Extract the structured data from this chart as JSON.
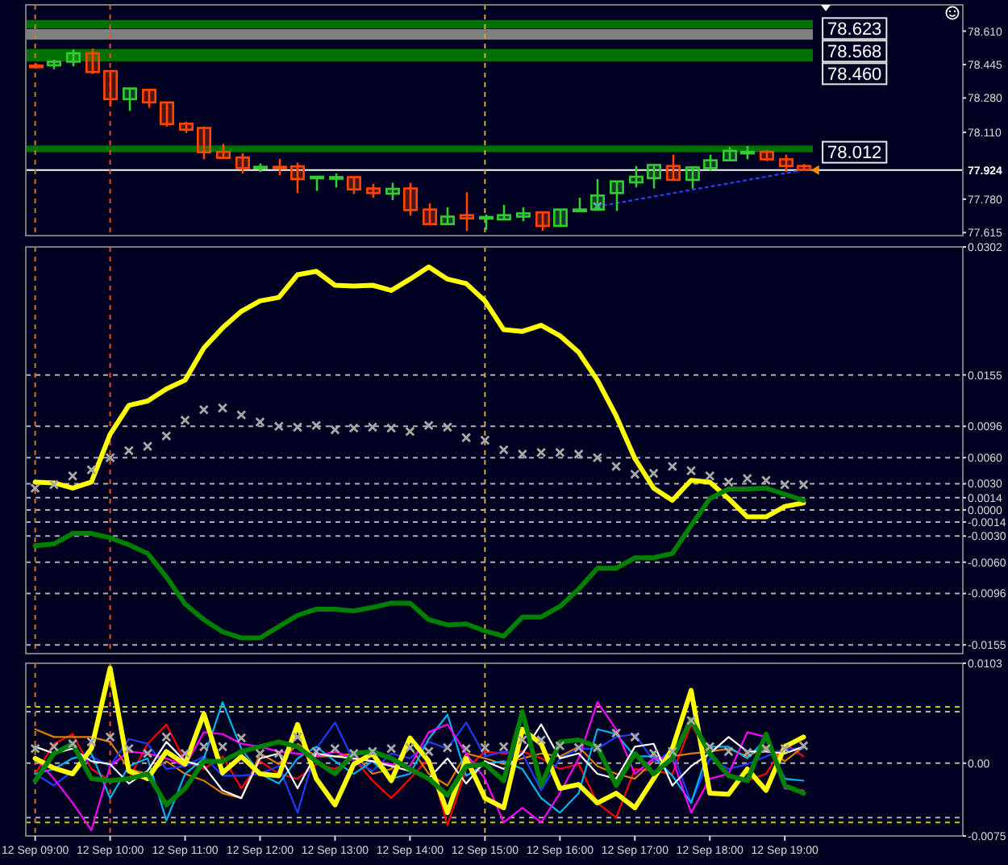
{
  "chart_data": [
    {
      "type": "candlestick",
      "categories": [
        "12 Sep 09:00",
        null,
        null,
        null,
        "12 Sep 10:00",
        null,
        null,
        null,
        "12 Sep 11:00",
        null,
        null,
        null,
        "12 Sep 12:00",
        null,
        null,
        null,
        "12 Sep 13:00",
        null,
        null,
        null,
        "12 Sep 14:00",
        null,
        null,
        null,
        "12 Sep 15:00",
        null,
        null,
        null,
        "12 Sep 16:00",
        null,
        null,
        null,
        "12 Sep 17:00",
        null,
        null,
        null,
        "12 Sep 18:00",
        null,
        null,
        null,
        "12 Sep 19:00",
        null,
        null,
        null,
        null,
        null,
        null,
        null,
        null,
        null
      ],
      "ohlc": [
        [
          78.44,
          78.45,
          78.425,
          78.432
        ],
        [
          78.441,
          78.469,
          78.422,
          78.459
        ],
        [
          78.459,
          78.52,
          78.436,
          78.501
        ],
        [
          78.501,
          78.524,
          78.399,
          78.408
        ],
        [
          78.413,
          78.418,
          78.239,
          78.274
        ],
        [
          78.274,
          78.327,
          78.216,
          78.327
        ],
        [
          78.32,
          78.32,
          78.232,
          78.258
        ],
        [
          78.258,
          78.258,
          78.139,
          78.151
        ],
        [
          78.153,
          78.162,
          78.107,
          78.123
        ],
        [
          78.132,
          78.139,
          77.977,
          78.012
        ],
        [
          78.014,
          78.053,
          77.984,
          77.984
        ],
        [
          77.986,
          78.007,
          77.907,
          77.933
        ],
        [
          77.935,
          77.956,
          77.914,
          77.94
        ],
        [
          77.94,
          77.979,
          77.898,
          77.935
        ],
        [
          77.942,
          77.961,
          77.81,
          77.879
        ],
        [
          77.886,
          77.891,
          77.821,
          77.891
        ],
        [
          77.884,
          77.907,
          77.838,
          77.889
        ],
        [
          77.889,
          77.889,
          77.805,
          77.828
        ],
        [
          77.833,
          77.856,
          77.787,
          77.81
        ],
        [
          77.807,
          77.861,
          77.775,
          77.831
        ],
        [
          77.833,
          77.861,
          77.698,
          77.726
        ],
        [
          77.729,
          77.759,
          77.657,
          77.657
        ],
        [
          77.657,
          77.74,
          77.657,
          77.694
        ],
        [
          77.701,
          77.814,
          77.624,
          77.685
        ],
        [
          77.687,
          77.705,
          77.629,
          77.692
        ],
        [
          77.68,
          77.752,
          77.68,
          77.701
        ],
        [
          77.694,
          77.74,
          77.671,
          77.71
        ],
        [
          77.715,
          77.715,
          77.624,
          77.648
        ],
        [
          77.648,
          77.729,
          77.643,
          77.729
        ],
        [
          77.724,
          77.787,
          77.722,
          77.729
        ],
        [
          77.729,
          77.879,
          77.722,
          77.798
        ],
        [
          77.81,
          77.868,
          77.722,
          77.868
        ],
        [
          77.863,
          77.944,
          77.838,
          77.891
        ],
        [
          77.884,
          77.949,
          77.833,
          77.949
        ],
        [
          77.944,
          78.0,
          77.875,
          77.875
        ],
        [
          77.875,
          77.937,
          77.833,
          77.937
        ],
        [
          77.933,
          78.0,
          77.921,
          77.972
        ],
        [
          77.972,
          78.037,
          77.972,
          78.019
        ],
        [
          78.009,
          78.042,
          77.977,
          78.014
        ],
        [
          78.014,
          78.023,
          77.968,
          77.977
        ],
        [
          77.977,
          78.0,
          77.914,
          77.944
        ],
        [
          77.944,
          77.954,
          77.921,
          77.924
        ],
        null,
        null,
        null,
        null,
        null,
        null,
        null,
        null
      ],
      "colors": [
        "#ff4500",
        "#32cd32",
        "#32cd32",
        "#ff4500",
        "#ff4500",
        "#32cd32",
        "#ff4500",
        "#ff4500",
        "#ff4500",
        "#ff4500",
        "#ff4500",
        "#ff4500",
        "#32cd32",
        "#ff4500",
        "#ff4500",
        "#32cd32",
        "#32cd32",
        "#ff4500",
        "#ff4500",
        "#32cd32",
        "#ff4500",
        "#ff4500",
        "#32cd32",
        "#ff4500",
        "#32cd32",
        "#32cd32",
        "#32cd32",
        "#ff4500",
        "#32cd32",
        "#32cd32",
        "#32cd32",
        "#32cd32",
        "#32cd32",
        "#32cd32",
        "#ff4500",
        "#32cd32",
        "#32cd32",
        "#32cd32",
        "#32cd32",
        "#ff4500",
        "#ff4500",
        "#ff4500",
        null,
        null,
        null,
        null,
        null,
        null,
        null,
        null
      ],
      "ylim": [
        77.6,
        78.74
      ],
      "yticks": [
        {
          "value": 78.61,
          "label": "78.610"
        },
        {
          "value": 78.445,
          "label": "78.445"
        },
        {
          "value": 78.28,
          "label": "78.280"
        },
        {
          "value": 78.11,
          "label": "78.110"
        },
        {
          "value": 77.78,
          "label": "77.780"
        },
        {
          "value": 77.615,
          "label": "77.615"
        }
      ],
      "tick_labels": "y",
      "bands": [
        {
          "axis": "y",
          "from": 78.623,
          "to": 78.665,
          "label": "78.623",
          "color": "#007000"
        },
        {
          "axis": "y",
          "from": 78.568,
          "to": 78.62,
          "label": "78.568",
          "color": "#808080"
        },
        {
          "axis": "y",
          "from": 78.46,
          "to": 78.522,
          "label": "78.460",
          "color": "#007000"
        },
        {
          "axis": "y",
          "from": 78.012,
          "to": 78.045,
          "label": "78.012",
          "color": "#007000"
        }
      ],
      "ref_lines": [
        {
          "axis": "y",
          "value": 77.924,
          "label": "77.924",
          "color": "#ffffff",
          "line_style": "solid"
        },
        {
          "axis": "x",
          "value": "12 Sep 09:00",
          "color": "#cc7a22",
          "line_style": "dashed"
        },
        {
          "axis": "x",
          "value": "12 Sep 10:00",
          "color": "#dd5533",
          "line_style": "dashed"
        },
        {
          "axis": "x",
          "value": "12 Sep 15:00",
          "color": "#ccaa44",
          "line_style": "dashed"
        }
      ],
      "series": [
        {
          "type": "line",
          "color": "#2b3fff",
          "line_style": "dotted",
          "values": [
            null,
            null,
            null,
            null,
            null,
            null,
            null,
            null,
            null,
            null,
            null,
            null,
            null,
            null,
            null,
            null,
            null,
            null,
            null,
            null,
            null,
            null,
            null,
            null,
            null,
            null,
            null,
            null,
            null,
            null,
            77.744,
            77.76,
            77.777,
            77.793,
            77.809,
            77.826,
            77.842,
            77.858,
            77.875,
            77.891,
            77.908,
            77.924,
            null,
            null,
            null,
            null,
            null,
            null,
            null,
            null
          ]
        },
        {
          "type": "scatter",
          "marker": "cross",
          "color": "#7b8fff",
          "values": [
            null,
            null,
            null,
            null,
            null,
            null,
            null,
            null,
            null,
            null,
            null,
            null,
            null,
            null,
            null,
            null,
            null,
            null,
            null,
            null,
            null,
            null,
            null,
            null,
            null,
            null,
            null,
            null,
            null,
            null,
            77.744,
            null,
            null,
            null,
            null,
            null,
            null,
            null,
            null,
            null,
            null,
            null,
            null,
            null,
            null,
            null,
            null,
            null,
            null,
            null
          ]
        }
      ]
    },
    {
      "type": "line",
      "categories": [
        "12 Sep 09:00",
        null,
        null,
        null,
        "12 Sep 10:00",
        null,
        null,
        null,
        "12 Sep 11:00",
        null,
        null,
        null,
        "12 Sep 12:00",
        null,
        null,
        null,
        "12 Sep 13:00",
        null,
        null,
        null,
        "12 Sep 14:00",
        null,
        null,
        null,
        "12 Sep 15:00",
        null,
        null,
        null,
        "12 Sep 16:00",
        null,
        null,
        null,
        "12 Sep 17:00",
        null,
        null,
        null,
        "12 Sep 18:00",
        null,
        null,
        null,
        "12 Sep 19:00",
        null,
        null,
        null,
        null,
        null,
        null,
        null,
        null,
        null
      ],
      "ylim": [
        -0.0165,
        0.0302
      ],
      "yticks": [
        0.0302,
        0.0155,
        0.0096,
        {
          "value": 0.006,
          "label": "0.0060"
        },
        {
          "value": 0.003,
          "label": "0.0030"
        },
        0.0014,
        {
          "value": 0,
          "label": "0.0000"
        },
        -0.0014,
        {
          "value": -0.003,
          "label": "-0.0030"
        },
        {
          "value": -0.006,
          "label": "-0.0060"
        },
        -0.0096,
        -0.0155
      ],
      "tick_labels": "y",
      "ref_lines": [
        {
          "axis": "y",
          "value": 0.0155,
          "color": "#b0b0b0",
          "line_style": "dashed"
        },
        {
          "axis": "y",
          "value": 0.0096,
          "color": "#b0b0b0",
          "line_style": "dashed"
        },
        {
          "axis": "y",
          "value": 0.006,
          "color": "#b0b0b0",
          "line_style": "dashed"
        },
        {
          "axis": "y",
          "value": 0.003,
          "color": "#b0b0b0",
          "line_style": "dashed"
        },
        {
          "axis": "y",
          "value": 0.0014,
          "color": "#b0b0b0",
          "line_style": "dashed"
        },
        {
          "axis": "y",
          "value": 0,
          "color": "#b0b0b0",
          "line_style": "dashed"
        },
        {
          "axis": "y",
          "value": -0.0014,
          "color": "#b0b0b0",
          "line_style": "dashed"
        },
        {
          "axis": "y",
          "value": -0.003,
          "color": "#b0b0b0",
          "line_style": "dashed"
        },
        {
          "axis": "y",
          "value": -0.006,
          "color": "#b0b0b0",
          "line_style": "dashed"
        },
        {
          "axis": "y",
          "value": -0.0096,
          "color": "#b0b0b0",
          "line_style": "dashed"
        },
        {
          "axis": "y",
          "value": -0.0155,
          "color": "#b0b0b0",
          "line_style": "dashed"
        },
        {
          "axis": "x",
          "value": "12 Sep 09:00",
          "color": "#cc7a22",
          "line_style": "dashed"
        },
        {
          "axis": "x",
          "value": "12 Sep 10:00",
          "color": "#dd5533",
          "line_style": "dashed"
        },
        {
          "axis": "x",
          "value": "12 Sep 15:00",
          "color": "#ccaa44",
          "line_style": "dashed"
        }
      ],
      "series": [
        {
          "color": "#ffff00",
          "values": [
            0.0032,
            0.0031,
            0.0025,
            0.0032,
            0.0087,
            0.012,
            0.0125,
            0.0139,
            0.0149,
            0.0186,
            0.0209,
            0.0228,
            0.024,
            0.0244,
            0.027,
            0.0274,
            0.0258,
            0.0257,
            0.0258,
            0.0252,
            0.0265,
            0.0279,
            0.0265,
            0.026,
            0.024,
            0.0207,
            0.0205,
            0.0212,
            0.02,
            0.0181,
            0.0149,
            0.0108,
            0.0059,
            0.0025,
            0.0011,
            0.0034,
            0.0032,
            0.0013,
            -0.0008,
            -0.0008,
            0.0004,
            0.0008,
            null,
            null,
            null,
            null,
            null,
            null,
            null,
            null
          ]
        },
        {
          "color": "#008000",
          "values": [
            -0.0041,
            -0.0039,
            -0.0027,
            -0.0027,
            -0.0032,
            -0.004,
            -0.005,
            -0.0077,
            -0.0108,
            -0.0126,
            -0.014,
            -0.0147,
            -0.0147,
            -0.0134,
            -0.0121,
            -0.0114,
            -0.0114,
            -0.0116,
            -0.0112,
            -0.0107,
            -0.0107,
            -0.0126,
            -0.0132,
            -0.0131,
            -0.0139,
            -0.0145,
            -0.0123,
            -0.0123,
            -0.0111,
            -0.0091,
            -0.0067,
            -0.0067,
            -0.0055,
            -0.0055,
            -0.005,
            -0.0018,
            0.0013,
            0.0024,
            0.0024,
            0.0025,
            0.0018,
            0.0011,
            null,
            null,
            null,
            null,
            null,
            null,
            null,
            null
          ]
        },
        {
          "type": "scatter",
          "marker": "cross",
          "color": "#a8a8a8",
          "values": [
            0.0025,
            0.0029,
            0.0039,
            0.0046,
            0.006,
            0.0068,
            0.0073,
            0.0085,
            0.0103,
            0.0115,
            0.0117,
            0.0109,
            0.0101,
            0.0096,
            0.0095,
            0.0097,
            0.0092,
            0.0094,
            0.0095,
            0.0094,
            0.009,
            0.0097,
            0.0095,
            0.0083,
            0.008,
            0.0069,
            0.0064,
            0.0066,
            0.0066,
            0.0064,
            0.006,
            0.005,
            0.0041,
            0.0042,
            0.005,
            0.0045,
            0.0039,
            0.0032,
            0.0036,
            0.0034,
            0.0029,
            0.0029,
            null,
            null,
            null,
            null,
            null,
            null,
            null,
            null
          ]
        }
      ]
    },
    {
      "type": "line",
      "categories": [
        "12 Sep 09:00",
        null,
        null,
        null,
        "12 Sep 10:00",
        null,
        null,
        null,
        "12 Sep 11:00",
        null,
        null,
        null,
        "12 Sep 12:00",
        null,
        null,
        null,
        "12 Sep 13:00",
        null,
        null,
        null,
        "12 Sep 14:00",
        null,
        null,
        null,
        "12 Sep 15:00",
        null,
        null,
        null,
        "12 Sep 16:00",
        null,
        null,
        null,
        "12 Sep 17:00",
        null,
        null,
        null,
        "12 Sep 18:00",
        null,
        null,
        null,
        "12 Sep 19:00",
        null,
        null,
        null,
        null,
        null,
        null,
        null,
        null,
        null
      ],
      "ylim": [
        -0.0075,
        0.0103
      ],
      "yticks": [
        0.0103,
        {
          "value": 0,
          "label": "0.00"
        },
        -0.0075
      ],
      "ref_lines": [
        {
          "axis": "y",
          "value": 0.0058,
          "color": "#c8c800",
          "line_style": "dashed"
        },
        {
          "axis": "y",
          "value": 0.0053,
          "color": "#b0b0b0",
          "line_style": "dashed"
        },
        {
          "axis": "y",
          "value": 0,
          "color": "#b0b0b0",
          "line_style": "dashed"
        },
        {
          "axis": "y",
          "value": -0.0056,
          "color": "#b0b0b0",
          "line_style": "dashed"
        },
        {
          "axis": "y",
          "value": -0.0061,
          "color": "#c8c800",
          "line_style": "dashed"
        },
        {
          "axis": "x",
          "value": "12 Sep 09:00",
          "color": "#cc7a22",
          "line_style": "dashed"
        },
        {
          "axis": "x",
          "value": "12 Sep 10:00",
          "color": "#dd5533",
          "line_style": "dashed"
        },
        {
          "axis": "x",
          "value": "12 Sep 15:00",
          "color": "#ccaa44",
          "line_style": "dashed"
        }
      ],
      "series": [
        {
          "color": "#ff0000",
          "values": [
            -0.0011,
            0.002,
            0.003,
            -0.0006,
            -0.0018,
            -0.0016,
            0.002,
            0.004,
            0.0002,
            -0.0006,
            0.0007,
            -0.0026,
            0.0002,
            -0.0011,
            -0.0016,
            -0.0001,
            -0.0006,
            0.0005,
            -0.0018,
            -0.0036,
            -0.0016,
            0.0005,
            -0.0064,
            -0.0006,
            0.0012,
            0.001,
            0.0012,
            0.0005,
            -0.0006,
            -0.0001,
            -0.0041,
            -0.0056,
            -0.0006,
            -0.0008,
            -0.0011,
            0.004,
            0.0007,
            -0.0011,
            -0.0018,
            -0.0011,
            0.002,
            0.0007,
            null,
            null,
            null,
            null,
            null,
            null,
            null,
            null
          ]
        },
        {
          "color": "#e07b00",
          "values": [
            0.0035,
            0.0027,
            0.0027,
            0.0027,
            0.0022,
            -0.0006,
            -0.0011,
            0.0002,
            -0.0011,
            -0.0018,
            -0.0031,
            -0.0036,
            0.001,
            -0.0001,
            0.002,
            0.0007,
            0.0007,
            0.001,
            -0.0011,
            -0.0006,
            0.0017,
            -0.0011,
            -0.0023,
            0.001,
            0.0005,
            -0.0001,
            0.0005,
            0.001,
            0.0007,
            0.0017,
            -0.0003,
            -0.0011,
            -0.0016,
            0.0002,
            0.0007,
            0.001,
            0.0012,
            0.0015,
            0.0007,
            0.0017,
            0.0002,
            0.0017,
            null,
            null,
            null,
            null,
            null,
            null,
            null,
            null
          ]
        },
        {
          "color": "#1e3cff",
          "values": [
            -0.0011,
            -0.0023,
            -0.0008,
            0.0007,
            -0.0003,
            0.0025,
            0.002,
            -0.0006,
            -0.0003,
            0.0007,
            -0.0013,
            -0.0013,
            -0.0011,
            -0.0003,
            -0.0051,
            0.0015,
            0.0042,
            0.0002,
            -0.0008,
            0.001,
            0.0005,
            0.0022,
            0.0015,
            0.0042,
            0.0007,
            0.0012,
            0.001,
            -0.0028,
            0.0005,
            0.0015,
            0.0015,
            0.0027,
            0.003,
            0.0002,
            0.0012,
            -0.0041,
            0.0005,
            -0.0006,
            -0.0001,
            0.0007,
            0.0015,
            0.0015,
            null,
            null,
            null,
            null,
            null,
            null,
            null,
            null
          ]
        },
        {
          "color": "#00b4f0",
          "values": [
            -0.0011,
            -0.0006,
            0.0005,
            0.001,
            -0.0036,
            -0.0003,
            0.0005,
            -0.0059,
            -0.0011,
            0.0005,
            0.0063,
            0.0015,
            -0.0011,
            -0.0021,
            0.0005,
            0.0017,
            0.0002,
            -0.0011,
            0.0002,
            -0.0016,
            -0.0011,
            0.0025,
            0.005,
            -0.0013,
            -0.0001,
            0.0002,
            -0.0006,
            -0.0036,
            -0.0051,
            -0.0031,
            0.0035,
            0.003,
            0.0007,
            0.0007,
            -0.0013,
            -0.0041,
            0.0017,
            0.0017,
            0.0005,
            0.0025,
            -0.0016,
            -0.0018,
            null,
            null,
            null,
            null,
            null,
            null,
            null,
            null
          ]
        },
        {
          "color": "#ff00ff",
          "values": [
            0.0005,
            -0.0016,
            -0.0041,
            -0.0069,
            -0.0003,
            0.0012,
            0.001,
            0.0005,
            -0.0003,
            0.0032,
            0.003,
            0.002,
            0.0017,
            0.0012,
            0.001,
            0.0007,
            0.0012,
            0.0005,
            0.0002,
            -0.0001,
            -0.0003,
            0.0032,
            0.004,
            0.001,
            -0.0016,
            -0.0061,
            -0.0046,
            -0.0061,
            -0.0031,
            0.0005,
            0.0063,
            0.0035,
            -0.0011,
            0.0005,
            0.0005,
            -0.0051,
            -0.0016,
            -0.0011,
            0.0032,
            0.0027,
            -0.0026,
            -0.0028,
            null,
            null,
            null,
            null,
            null,
            null,
            null,
            null
          ]
        },
        {
          "color": "#ffffff",
          "values": [
            0.0017,
            0.001,
            0.0015,
            0.0002,
            -0.0001,
            -0.0021,
            -0.0008,
            0.0022,
            0.0002,
            -0.0003,
            -0.0028,
            -0.0036,
            0.0005,
            0.001,
            -0.0026,
            0.001,
            0.0007,
            0.0005,
            0.0002,
            -0.0003,
            -0.0008,
            -0.0016,
            0.0005,
            -0.0021,
            0.0002,
            -0.0006,
            0.001,
            0.004,
            0.0005,
            0.001,
            -0.0011,
            -0.0016,
            0.0017,
            0.002,
            -0.0023,
            -0.0003,
            0.001,
            0.0027,
            0.0012,
            0.0012,
            0.001,
            0.0017,
            null,
            null,
            null,
            null,
            null,
            null,
            null,
            null
          ]
        },
        {
          "color": "#ffff00",
          "values": [
            0.0005,
            -0.0005,
            -0.0011,
            0.0015,
            0.0098,
            -0.0008,
            -0.0016,
            0.0012,
            -0.0001,
            0.0051,
            -0.001,
            0.0007,
            -0.0011,
            -0.0013,
            0.004,
            -0.0016,
            -0.0043,
            -0.0001,
            0.001,
            -0.0018,
            0.0026,
            0.0002,
            -0.0051,
            0.0005,
            -0.0036,
            -0.0046,
            0.0035,
            0.002,
            -0.0026,
            -0.0022,
            -0.0041,
            -0.0031,
            -0.0046,
            -0.0016,
            0.0015,
            0.0075,
            -0.0031,
            -0.0032,
            -0.0006,
            -0.0028,
            0.0017,
            0.0027,
            null,
            null,
            null,
            null,
            null,
            null,
            null,
            null
          ]
        },
        {
          "color": "#008000",
          "values": [
            -0.0018,
            0.001,
            0.002,
            -0.0016,
            -0.0018,
            -0.0016,
            -0.0011,
            -0.0043,
            -0.0026,
            0.0002,
            0.0002,
            0.0012,
            0.0017,
            0.0022,
            0.0017,
            0.0002,
            -0.0011,
            0.001,
            0.0012,
            0.0005,
            -0.0006,
            -0.0016,
            -0.0033,
            -0.0003,
            -0.0001,
            -0.0018,
            0.0053,
            -0.0023,
            0.0022,
            0.0024,
            0.0017,
            -0.0023,
            0.001,
            -0.0011,
            0.0005,
            0.0045,
            0.001,
            -0.0013,
            -0.0018,
            0.003,
            -0.0023,
            -0.0031,
            null,
            null,
            null,
            null,
            null,
            null,
            null,
            null
          ]
        },
        {
          "type": "scatter",
          "marker": "cross",
          "color": "#a8a8a8",
          "values": [
            0.0015,
            0.0017,
            0.002,
            0.0022,
            0.0027,
            0.0015,
            0.001,
            0.0027,
            0.001,
            0.0017,
            0.0017,
            0.0026,
            0.001,
            0.001,
            0.0027,
            0.0012,
            0.0015,
            0.001,
            0.0012,
            0.0015,
            0.0016,
            0.0012,
            0.0016,
            0.0015,
            0.0016,
            0.0017,
            0.0024,
            0.0024,
            0.0018,
            0.0016,
            0.0016,
            0.0031,
            0.0027,
            0.001,
            0.0012,
            0.0044,
            0.0017,
            0.0012,
            0.0011,
            0.0015,
            0.0015,
            0.0018,
            null,
            null,
            null,
            null,
            null,
            null,
            null,
            null
          ]
        }
      ]
    }
  ]
}
